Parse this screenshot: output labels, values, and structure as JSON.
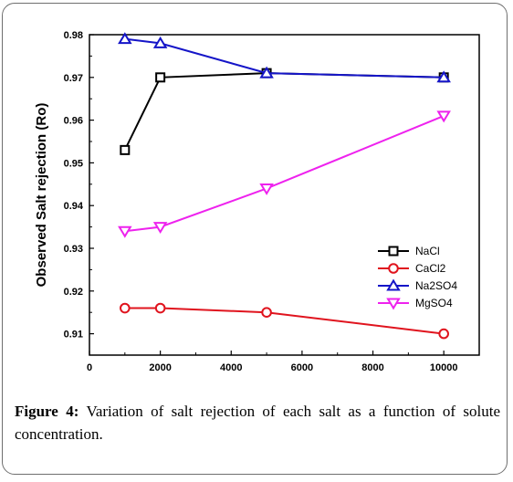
{
  "caption": {
    "label": "Figure 4:",
    "text": "Variation of salt rejection of each salt as a function of solute concentration."
  },
  "chart_data": {
    "type": "line",
    "title": "",
    "xlabel": "",
    "ylabel": "Observed Salt rejection (Ro)",
    "xlim": [
      0,
      11000
    ],
    "ylim": [
      0.905,
      0.98
    ],
    "xticks": [
      0,
      2000,
      4000,
      6000,
      8000,
      10000
    ],
    "yticks": [
      0.91,
      0.92,
      0.93,
      0.94,
      0.95,
      0.96,
      0.97,
      0.98
    ],
    "grid": false,
    "legend_position": "center-right",
    "series": [
      {
        "name": "NaCl",
        "color": "#000000",
        "marker": "square",
        "points": [
          [
            1000,
            0.953
          ],
          [
            2000,
            0.97
          ],
          [
            5000,
            0.971
          ],
          [
            10000,
            0.97
          ]
        ]
      },
      {
        "name": "CaCl2",
        "color": "#e0141e",
        "marker": "circle",
        "points": [
          [
            1000,
            0.916
          ],
          [
            2000,
            0.916
          ],
          [
            5000,
            0.915
          ],
          [
            10000,
            0.91
          ]
        ]
      },
      {
        "name": "Na2SO4",
        "color": "#1515c8",
        "marker": "triangle-up",
        "points": [
          [
            1000,
            0.979
          ],
          [
            2000,
            0.978
          ],
          [
            5000,
            0.971
          ],
          [
            10000,
            0.97
          ]
        ]
      },
      {
        "name": "MgSO4",
        "color": "#ee22ee",
        "marker": "triangle-down",
        "points": [
          [
            1000,
            0.934
          ],
          [
            2000,
            0.935
          ],
          [
            5000,
            0.944
          ],
          [
            10000,
            0.961
          ]
        ]
      }
    ]
  }
}
